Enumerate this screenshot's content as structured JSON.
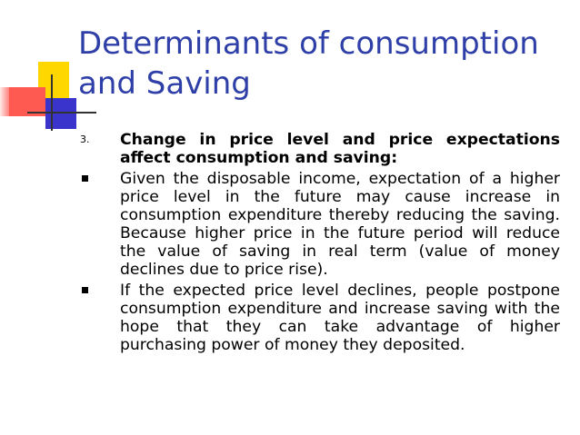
{
  "slide": {
    "title_line1": "Determinants of consumption",
    "title_line2": "and Saving",
    "items": [
      {
        "marker": "3.",
        "text": "Change in price level and price expectations affect consumption and saving:"
      },
      {
        "marker": "bullet",
        "text": "Given the disposable income, expectation of a higher price level in the future may cause increase in consumption expenditure thereby reducing the saving. Because higher price in the future period will reduce the value of saving in real term (value of money declines due to price rise)."
      },
      {
        "marker": "bullet",
        "text": "If the expected price level declines, people postpone consumption expenditure and increase saving with the hope that they can take advantage of higher purchasing power of money they deposited."
      }
    ]
  },
  "colors": {
    "title": "#2f3fa8",
    "deco_yellow": "#ffd700",
    "deco_red": "#ff5a52",
    "deco_blue": "#3a33cc"
  }
}
